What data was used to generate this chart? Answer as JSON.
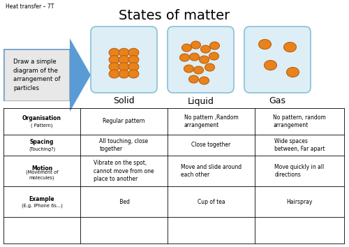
{
  "title": "States of matter",
  "subtitle": "Heat transfer – 7T",
  "bg_color": "#ffffff",
  "particle_color": "#e8821a",
  "particle_edge_color": "#c06010",
  "box_color": "#cce8f0",
  "arrow_color": "#5b9bd5",
  "arrow_text": "Draw a simple\ndiagram of the\narrangement of\nparticles",
  "labels": [
    "Solid",
    "Liquid",
    "Gas"
  ],
  "table_headers": [
    "Organisation\n\n( Pattern)",
    "Organisation\n\n( Pattern)",
    "Organisation\n\n( Pattern)",
    "Organisation\n\n( Pattern)"
  ],
  "row_labels": [
    "Organisation\n\n( Pattern)",
    "Spacing\n\n(Touching?)",
    "Motion\n\n(Movement of\nmolecules)",
    "Example\n\n(E.g. IPhone 6s...)"
  ],
  "row_label_bold": [
    "Organisation",
    "Spacing",
    "Motion",
    "Example"
  ],
  "row_label_sub": [
    "( Pattern)",
    "(Touching?)",
    "(Movement of\nmolecules)",
    "(E.g. IPhone 6s...)"
  ],
  "col1": [
    "Regular pattern",
    "All touching, close\ntogether",
    "Vibrate on the spot,\ncannot move from one\nplace to another",
    " Bed"
  ],
  "col2": [
    "No pattern ,Random\narrangement",
    "Close together",
    "Move and slide around\neach other",
    "Cup of tea"
  ],
  "col3": [
    "No pattern, random\narrangement",
    "Wide spaces\nbetween, Far apart",
    "Move quickly in all\ndirections",
    "Hairspray"
  ]
}
